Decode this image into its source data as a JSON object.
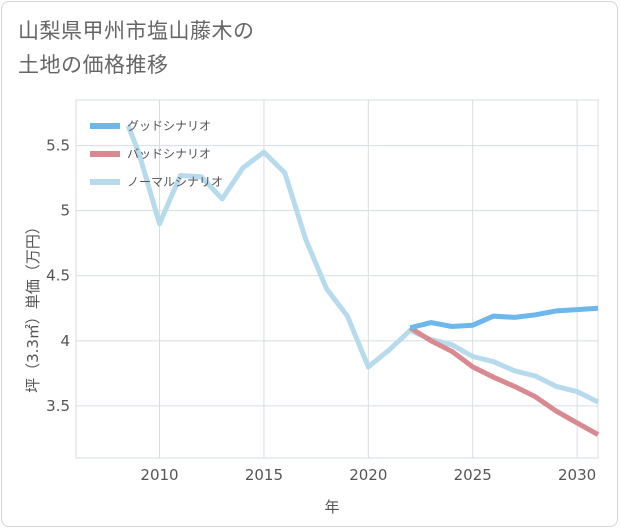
{
  "title_line1": "山梨県甲州市塩山藤木の",
  "title_line2": "土地の価格推移",
  "chart_data": {
    "type": "line",
    "title": "山梨県甲州市塩山藤木の土地の価格推移",
    "xlabel": "年",
    "ylabel": "坪（3.3㎡）単価（万円）",
    "xlim": [
      2006,
      2031
    ],
    "ylim": [
      3.1,
      5.85
    ],
    "xticks": [
      2010,
      2015,
      2020,
      2025,
      2030
    ],
    "yticks": [
      3.5,
      4,
      4.5,
      5,
      5.5
    ],
    "ytick_labels": [
      "3.5",
      "4",
      "4.5",
      "5",
      "5.5"
    ],
    "grid": true,
    "legend_position": "top-left",
    "series": [
      {
        "name": "グッドシナリオ",
        "color": "#6cb8ec",
        "x": [
          2022,
          2023,
          2024,
          2025,
          2026,
          2027,
          2028,
          2029,
          2030,
          2031
        ],
        "y": [
          4.1,
          4.14,
          4.11,
          4.12,
          4.19,
          4.18,
          4.2,
          4.23,
          4.24,
          4.25
        ]
      },
      {
        "name": "バッドシナリオ",
        "color": "#d88a90",
        "x": [
          2022,
          2023,
          2024,
          2025,
          2026,
          2027,
          2028,
          2029,
          2030,
          2031
        ],
        "y": [
          4.1,
          4.0,
          3.92,
          3.8,
          3.72,
          3.65,
          3.57,
          3.46,
          3.37,
          3.28
        ]
      },
      {
        "name": "ノーマルシナリオ",
        "color": "#b7dbed",
        "x": [
          2008.5,
          2009,
          2010,
          2011,
          2012,
          2013,
          2014,
          2015,
          2016,
          2017,
          2018,
          2019,
          2020,
          2021,
          2022,
          2023,
          2024,
          2025,
          2026,
          2027,
          2028,
          2029,
          2030,
          2031
        ],
        "y": [
          5.65,
          5.45,
          4.9,
          5.27,
          5.26,
          5.09,
          5.33,
          5.45,
          5.29,
          4.78,
          4.4,
          4.19,
          3.8,
          3.93,
          4.08,
          4.01,
          3.97,
          3.88,
          3.84,
          3.77,
          3.73,
          3.65,
          3.61,
          3.53
        ]
      }
    ]
  }
}
